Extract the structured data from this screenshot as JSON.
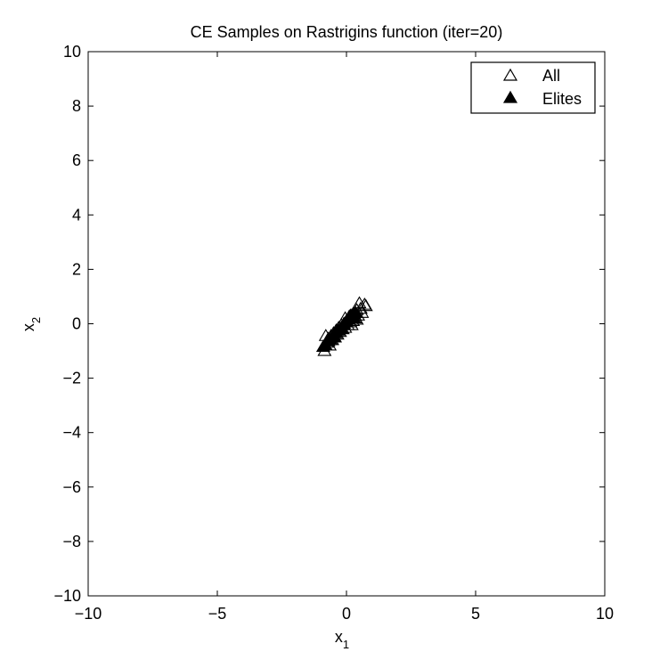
{
  "chart_data": {
    "type": "scatter",
    "title": "CE Samples on Rastrigins function (iter=20)",
    "xlabel": "x",
    "xlabel_sub": "1",
    "ylabel": "x",
    "ylabel_sub": "2",
    "xlim": [
      -10,
      10
    ],
    "ylim": [
      -10,
      10
    ],
    "xticks": [
      -10,
      -5,
      0,
      5,
      10
    ],
    "yticks": [
      -10,
      -8,
      -6,
      -4,
      -2,
      0,
      2,
      4,
      6,
      8,
      10
    ],
    "grid": false,
    "legend_position": "top-right",
    "series": [
      {
        "name": "All",
        "marker": "triangle-open",
        "color": "#000000",
        "points": [
          [
            -0.85,
            -1.0
          ],
          [
            -0.8,
            -0.45
          ],
          [
            -0.75,
            -0.7
          ],
          [
            -0.7,
            -0.55
          ],
          [
            -0.65,
            -0.8
          ],
          [
            -0.6,
            -0.45
          ],
          [
            -0.55,
            -0.6
          ],
          [
            -0.5,
            -0.35
          ],
          [
            -0.45,
            -0.5
          ],
          [
            -0.4,
            -0.25
          ],
          [
            -0.35,
            -0.4
          ],
          [
            -0.3,
            -0.15
          ],
          [
            -0.25,
            -0.3
          ],
          [
            -0.2,
            -0.05
          ],
          [
            -0.15,
            -0.2
          ],
          [
            -0.1,
            0.0
          ],
          [
            -0.05,
            -0.15
          ],
          [
            0.0,
            0.1
          ],
          [
            0.05,
            -0.05
          ],
          [
            0.1,
            0.2
          ],
          [
            0.15,
            0.05
          ],
          [
            0.2,
            0.3
          ],
          [
            0.25,
            0.1
          ],
          [
            0.3,
            0.35
          ],
          [
            0.35,
            0.2
          ],
          [
            0.4,
            0.5
          ],
          [
            0.45,
            0.3
          ],
          [
            0.5,
            0.75
          ],
          [
            0.55,
            0.55
          ],
          [
            0.6,
            0.4
          ],
          [
            0.7,
            0.7
          ],
          [
            0.75,
            0.65
          ],
          [
            0.4,
            0.15
          ],
          [
            0.2,
            -0.05
          ],
          [
            -0.05,
            0.2
          ]
        ]
      },
      {
        "name": "Elites",
        "marker": "triangle-filled",
        "color": "#000000",
        "points": [
          [
            -0.9,
            -0.85
          ],
          [
            -0.8,
            -0.8
          ],
          [
            -0.7,
            -0.65
          ],
          [
            -0.6,
            -0.6
          ],
          [
            -0.5,
            -0.45
          ],
          [
            -0.4,
            -0.35
          ],
          [
            -0.3,
            -0.25
          ],
          [
            -0.2,
            -0.15
          ],
          [
            -0.1,
            -0.05
          ],
          [
            0.0,
            0.05
          ],
          [
            0.05,
            0.15
          ],
          [
            0.1,
            0.25
          ],
          [
            0.15,
            0.3
          ],
          [
            0.25,
            0.35
          ],
          [
            0.3,
            0.2
          ],
          [
            0.35,
            0.4
          ],
          [
            -0.15,
            -0.2
          ],
          [
            -0.45,
            -0.5
          ]
        ]
      }
    ]
  }
}
